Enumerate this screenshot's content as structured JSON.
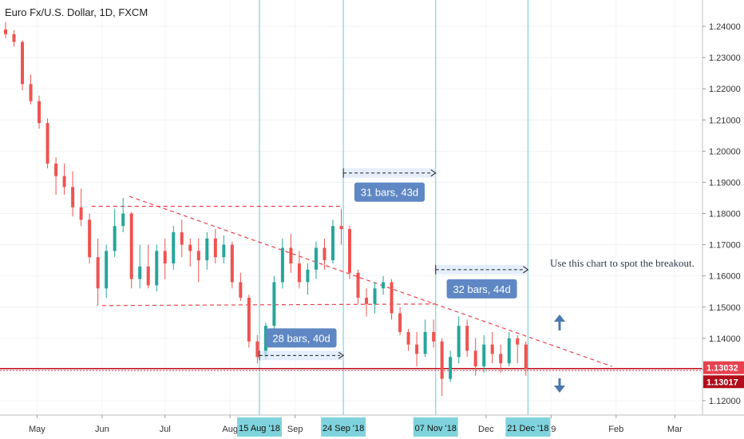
{
  "chart_data": {
    "type": "candlestick",
    "title": "Euro Fx/U.S. Dollar, 1D, FXCM",
    "y_ticks": [
      "1.24000",
      "1.23000",
      "1.22000",
      "1.21000",
      "1.20000",
      "1.19000",
      "1.18000",
      "1.17000",
      "1.16000",
      "1.15000",
      "1.14000",
      "1.13000",
      "1.12000"
    ],
    "ylim": [
      1.1165,
      1.2475
    ],
    "x_month_labels": [
      {
        "label": "May",
        "date": "2018-05-01"
      },
      {
        "label": "Jun",
        "date": "2018-06-01"
      },
      {
        "label": "Jul",
        "date": "2018-07-01"
      },
      {
        "label": "Aug",
        "date": "2018-08-01"
      },
      {
        "label": "Sep",
        "date": "2018-09-01"
      },
      {
        "label": "Dec",
        "date": "2018-12-01"
      },
      {
        "label": "19",
        "date": "2019-01-01"
      },
      {
        "label": "Feb",
        "date": "2019-02-01"
      },
      {
        "label": "Mar",
        "date": "2019-03-01"
      }
    ],
    "xlim": [
      "2018-04-16",
      "2019-03-25"
    ],
    "date_tags": [
      {
        "label": "15 Aug '18",
        "date": "2018-08-15"
      },
      {
        "label": "24 Sep '18",
        "date": "2018-09-24"
      },
      {
        "label": "07 Nov '18",
        "date": "2018-11-07"
      },
      {
        "label": "21 Dec '18",
        "date": "2018-12-21"
      }
    ],
    "bar_count_annotations": [
      {
        "label": "28 bars, 40d",
        "from": "2018-08-15",
        "to": "2018-09-24",
        "price": 1.1345
      },
      {
        "label": "31 bars, 43d",
        "from": "2018-09-24",
        "to": "2018-11-07",
        "price": 1.193
      },
      {
        "label": "32 bars, 44d",
        "from": "2018-11-07",
        "to": "2018-12-21",
        "price": 1.162
      }
    ],
    "note": "Use this chart to spot the breakout.",
    "trend_lines": [
      {
        "from": [
          "2018-05-27",
          1.1823
        ],
        "to": [
          "2018-09-24",
          1.1823
        ]
      },
      {
        "from": [
          "2018-06-01",
          1.1505
        ],
        "to": [
          "2018-11-07",
          1.151
        ]
      },
      {
        "from": [
          "2018-06-14",
          1.1855
        ],
        "to": [
          "2019-01-30",
          1.131
        ]
      }
    ],
    "support_line": 1.1303,
    "price_labels": [
      {
        "label": "1.13032",
        "price": 1.13032
      },
      {
        "label": "1.13017",
        "price": 1.13017
      }
    ],
    "candles": [
      [
        "2018-04-16",
        1.239,
        1.2414,
        1.2362,
        1.2375
      ],
      [
        "2018-04-20",
        1.2375,
        1.2388,
        1.2335,
        1.235
      ],
      [
        "2018-04-24",
        1.235,
        1.2355,
        1.2195,
        1.2215
      ],
      [
        "2018-04-28",
        1.2215,
        1.2245,
        1.215,
        1.216
      ],
      [
        "2018-05-02",
        1.216,
        1.2178,
        1.2072,
        1.209
      ],
      [
        "2018-05-06",
        1.209,
        1.2105,
        1.1945,
        1.196
      ],
      [
        "2018-05-10",
        1.196,
        1.198,
        1.186,
        1.192
      ],
      [
        "2018-05-14",
        1.192,
        1.196,
        1.186,
        1.1885
      ],
      [
        "2018-05-18",
        1.1885,
        1.1935,
        1.179,
        1.182
      ],
      [
        "2018-05-22",
        1.182,
        1.188,
        1.176,
        1.178
      ],
      [
        "2018-05-26",
        1.178,
        1.18,
        1.164,
        1.166
      ],
      [
        "2018-05-30",
        1.166,
        1.172,
        1.1505,
        1.156
      ],
      [
        "2018-06-03",
        1.156,
        1.17,
        1.153,
        1.168
      ],
      [
        "2018-06-07",
        1.168,
        1.1815,
        1.166,
        1.176
      ],
      [
        "2018-06-11",
        1.176,
        1.185,
        1.174,
        1.18
      ],
      [
        "2018-06-15",
        1.18,
        1.1805,
        1.156,
        1.159
      ],
      [
        "2018-06-19",
        1.159,
        1.17,
        1.156,
        1.163
      ],
      [
        "2018-06-23",
        1.163,
        1.17,
        1.156,
        1.157
      ],
      [
        "2018-06-27",
        1.157,
        1.17,
        1.155,
        1.168
      ],
      [
        "2018-07-01",
        1.168,
        1.172,
        1.159,
        1.164
      ],
      [
        "2018-07-05",
        1.164,
        1.176,
        1.162,
        1.174
      ],
      [
        "2018-07-09",
        1.174,
        1.178,
        1.166,
        1.17
      ],
      [
        "2018-07-13",
        1.17,
        1.172,
        1.163,
        1.168
      ],
      [
        "2018-07-17",
        1.168,
        1.172,
        1.158,
        1.165
      ],
      [
        "2018-07-21",
        1.165,
        1.174,
        1.162,
        1.172
      ],
      [
        "2018-07-25",
        1.172,
        1.175,
        1.164,
        1.166
      ],
      [
        "2018-07-29",
        1.166,
        1.173,
        1.164,
        1.17
      ],
      [
        "2018-08-02",
        1.17,
        1.171,
        1.156,
        1.158
      ],
      [
        "2018-08-06",
        1.158,
        1.161,
        1.152,
        1.153
      ],
      [
        "2018-08-10",
        1.153,
        1.154,
        1.137,
        1.139
      ],
      [
        "2018-08-14",
        1.139,
        1.141,
        1.132,
        1.134
      ],
      [
        "2018-08-18",
        1.134,
        1.145,
        1.133,
        1.144
      ],
      [
        "2018-08-22",
        1.144,
        1.16,
        1.142,
        1.158
      ],
      [
        "2018-08-26",
        1.158,
        1.172,
        1.156,
        1.169
      ],
      [
        "2018-08-30",
        1.169,
        1.1735,
        1.161,
        1.164
      ],
      [
        "2018-09-03",
        1.164,
        1.168,
        1.156,
        1.158
      ],
      [
        "2018-09-07",
        1.158,
        1.164,
        1.154,
        1.162
      ],
      [
        "2018-09-11",
        1.162,
        1.171,
        1.159,
        1.169
      ],
      [
        "2018-09-15",
        1.169,
        1.172,
        1.162,
        1.165
      ],
      [
        "2018-09-19",
        1.165,
        1.178,
        1.164,
        1.176
      ],
      [
        "2018-09-23",
        1.176,
        1.1815,
        1.17,
        1.175
      ],
      [
        "2018-09-27",
        1.175,
        1.176,
        1.159,
        1.161
      ],
      [
        "2018-10-01",
        1.161,
        1.162,
        1.151,
        1.153
      ],
      [
        "2018-10-05",
        1.153,
        1.156,
        1.147,
        1.151
      ],
      [
        "2018-10-09",
        1.151,
        1.158,
        1.148,
        1.156
      ],
      [
        "2018-10-13",
        1.156,
        1.16,
        1.154,
        1.158
      ],
      [
        "2018-10-17",
        1.158,
        1.159,
        1.146,
        1.148
      ],
      [
        "2018-10-21",
        1.148,
        1.15,
        1.141,
        1.142
      ],
      [
        "2018-10-25",
        1.142,
        1.143,
        1.136,
        1.138
      ],
      [
        "2018-10-29",
        1.138,
        1.142,
        1.131,
        1.135
      ],
      [
        "2018-11-02",
        1.135,
        1.146,
        1.134,
        1.142
      ],
      [
        "2018-11-06",
        1.142,
        1.146,
        1.137,
        1.139
      ],
      [
        "2018-11-10",
        1.139,
        1.14,
        1.1215,
        1.127
      ],
      [
        "2018-11-14",
        1.127,
        1.136,
        1.126,
        1.134
      ],
      [
        "2018-11-18",
        1.134,
        1.147,
        1.132,
        1.144
      ],
      [
        "2018-11-22",
        1.144,
        1.146,
        1.134,
        1.136
      ],
      [
        "2018-11-26",
        1.136,
        1.14,
        1.128,
        1.131
      ],
      [
        "2018-11-30",
        1.131,
        1.141,
        1.129,
        1.138
      ],
      [
        "2018-12-04",
        1.138,
        1.142,
        1.132,
        1.135
      ],
      [
        "2018-12-08",
        1.135,
        1.138,
        1.129,
        1.132
      ],
      [
        "2018-12-12",
        1.132,
        1.142,
        1.131,
        1.14
      ],
      [
        "2018-12-16",
        1.14,
        1.141,
        1.132,
        1.138
      ],
      [
        "2018-12-20",
        1.138,
        1.139,
        1.128,
        1.1302
      ]
    ]
  }
}
